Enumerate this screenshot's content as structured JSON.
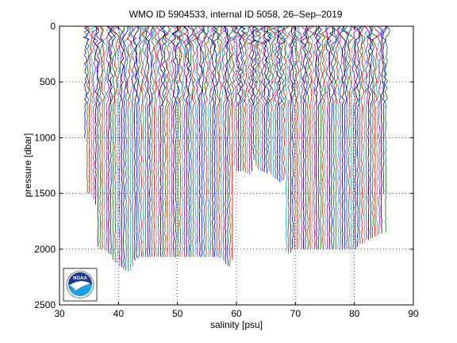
{
  "chart_data": {
    "type": "line",
    "title": "WMO ID 5904533, internal ID 5058, 26–Sep–2019",
    "xlabel": "salinity [psu]",
    "ylabel": "pressure [dbar]",
    "xlim": [
      30,
      90
    ],
    "ylim": [
      0,
      2500
    ],
    "y_reversed": true,
    "x_ticks": [
      30,
      40,
      50,
      60,
      70,
      80,
      90
    ],
    "y_ticks": [
      0,
      500,
      1000,
      1500,
      2000,
      2500
    ],
    "grid": "dotted",
    "series_colors": [
      "#0000ff",
      "#008000",
      "#ff0000",
      "#00bfbf",
      "#bf00bf",
      "#000000"
    ],
    "profiles": {
      "count": 140,
      "offset_start": 34.5,
      "offset_end": 85.5,
      "surface_salinity_mean": 35.0,
      "deep_salinity_mean": 34.7,
      "bottom_pressure": [
        1000,
        1500,
        1500,
        1520,
        1550,
        1600,
        1980,
        2000,
        2000,
        2010,
        2020,
        2040,
        2050,
        2100,
        2120,
        2130,
        2150,
        2160,
        2180,
        2190,
        2200,
        2190,
        2150,
        2100,
        2080,
        2080,
        2070,
        2070,
        2070,
        2070,
        2070,
        2070,
        2070,
        2070,
        2070,
        2070,
        2070,
        2070,
        2070,
        2070,
        2070,
        2070,
        2070,
        2070,
        2070,
        2070,
        2070,
        2070,
        2070,
        2070,
        2070,
        2070,
        2070,
        2070,
        2070,
        2070,
        2070,
        2070,
        2070,
        2070,
        2070,
        2070,
        2080,
        2080,
        2100,
        2130,
        2150,
        2160,
        2100,
        1250,
        1300,
        1300,
        1300,
        1300,
        1310,
        1320,
        1330,
        1300,
        1200,
        1250,
        1280,
        1300,
        1300,
        1310,
        1320,
        1300,
        1330,
        1350,
        1370,
        1380,
        1400,
        1390,
        1380,
        2020,
        2040,
        2030,
        2000,
        2000,
        2000,
        2000,
        2000,
        2000,
        2000,
        2000,
        2000,
        2000,
        2000,
        2000,
        2000,
        2000,
        2000,
        2000,
        2000,
        2000,
        2000,
        2000,
        2000,
        2000,
        2000,
        2000,
        2000,
        2000,
        2000,
        2000,
        2000,
        2000,
        1980,
        1950,
        1950,
        1950,
        1920,
        1920,
        1900,
        1900,
        1890,
        1880,
        1870,
        1860,
        1500,
        1850
      ]
    }
  },
  "logo": {
    "text": "NOAA",
    "colors": {
      "sky": "#1a3a8c",
      "water": "#1e9fe0",
      "bird": "#ffffff"
    }
  }
}
